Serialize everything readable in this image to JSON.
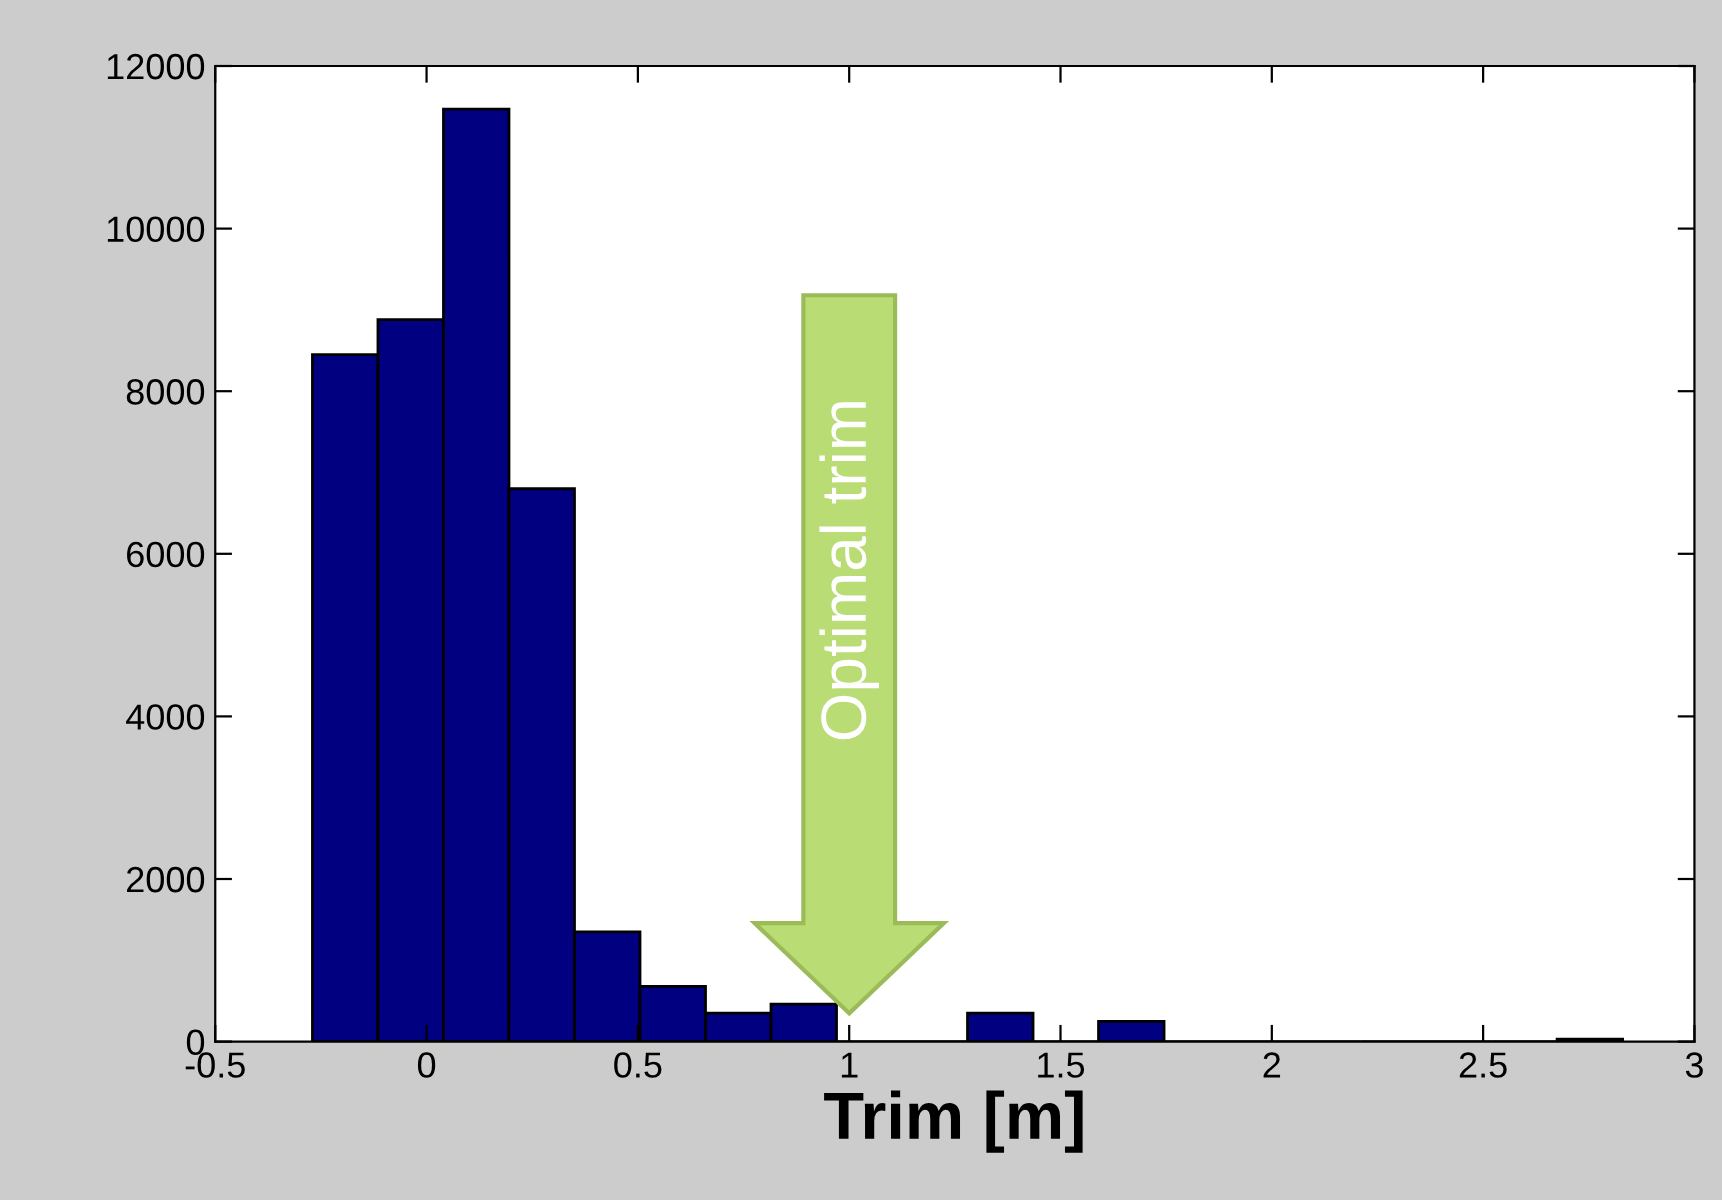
{
  "chart_data": {
    "type": "histogram",
    "xlabel": "Trim [m]",
    "bins": [
      -0.27,
      -0.115,
      0.04,
      0.195,
      0.35,
      0.505,
      0.66,
      0.815,
      0.97,
      1.125,
      1.28,
      1.435,
      1.59,
      1.745,
      1.9,
      2.055,
      2.21,
      2.365,
      2.52,
      2.675,
      2.83
    ],
    "values": [
      8450,
      8880,
      11470,
      6800,
      1350,
      680,
      350,
      460,
      0,
      0,
      350,
      0,
      250,
      0,
      0,
      0,
      0,
      0,
      0,
      30
    ],
    "color": "#000080",
    "xlim": [
      -0.5,
      3
    ],
    "xticks": [
      -0.5,
      0,
      0.5,
      1,
      1.5,
      2,
      2.5,
      3
    ],
    "ylim": [
      0,
      12000
    ],
    "yticks": [
      0,
      2000,
      4000,
      6000,
      8000,
      10000,
      12000
    ],
    "grid": false,
    "legend": false,
    "annotations": [
      "Optimal trim"
    ]
  }
}
